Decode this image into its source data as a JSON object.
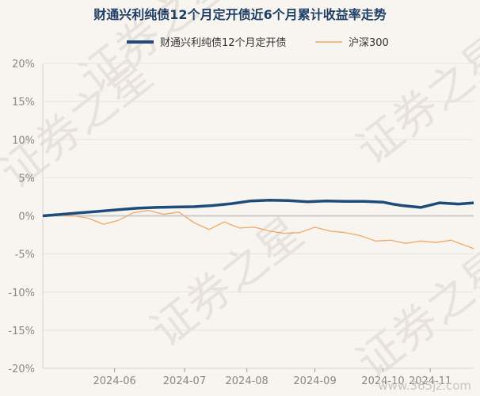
{
  "chart_data": {
    "type": "line",
    "title": "财通兴利纯债12个月定开债近6个月累计收益率走势",
    "xlabel": "",
    "ylabel": "",
    "ylim": [
      -20,
      20
    ],
    "yticks": [
      "20%",
      "15%",
      "10%",
      "5%",
      "0%",
      "-5%",
      "-10%",
      "-15%",
      "-20%"
    ],
    "ytick_values": [
      20,
      15,
      10,
      5,
      0,
      -5,
      -10,
      -15,
      -20
    ],
    "xticks": [
      "2024-06",
      "2024-07",
      "2024-08",
      "2024-09",
      "2024-10",
      "2024-11"
    ],
    "xtick_positions": [
      38,
      75,
      108,
      144,
      180,
      205
    ],
    "x_range": [
      0,
      228
    ],
    "grid": true,
    "legend_position": "top",
    "series": [
      {
        "name": "财通兴利纯债12个月定开债",
        "color": "#1f4b7a",
        "x": [
          0,
          10,
          20,
          30,
          40,
          50,
          60,
          70,
          80,
          90,
          100,
          110,
          120,
          130,
          140,
          150,
          160,
          170,
          180,
          185,
          190,
          200,
          210,
          220,
          228
        ],
        "y": [
          0,
          0.2,
          0.4,
          0.6,
          0.8,
          1.0,
          1.1,
          1.15,
          1.2,
          1.35,
          1.6,
          1.95,
          2.05,
          2.0,
          1.85,
          1.95,
          1.9,
          1.9,
          1.8,
          1.55,
          1.35,
          1.1,
          1.7,
          1.55,
          1.7
        ]
      },
      {
        "name": "沪深300",
        "color": "#f0a868",
        "x": [
          0,
          8,
          16,
          24,
          32,
          40,
          48,
          56,
          64,
          72,
          80,
          88,
          96,
          104,
          112,
          120,
          128,
          136,
          144,
          152,
          160,
          168,
          176,
          184,
          192,
          200,
          208,
          216,
          228
        ],
        "y": [
          0,
          0.1,
          0,
          -0.3,
          -1.1,
          -0.6,
          0.4,
          0.7,
          0.2,
          0.5,
          -0.9,
          -1.8,
          -0.8,
          -1.6,
          -1.5,
          -2.0,
          -2.3,
          -2.2,
          -1.5,
          -2.0,
          -2.2,
          -2.6,
          -3.3,
          -3.2,
          -3.6,
          -3.3,
          -3.5,
          -3.2,
          -4.3
        ]
      }
    ]
  },
  "watermark": {
    "text": "证券之星",
    "site": "www.365jz.com"
  }
}
